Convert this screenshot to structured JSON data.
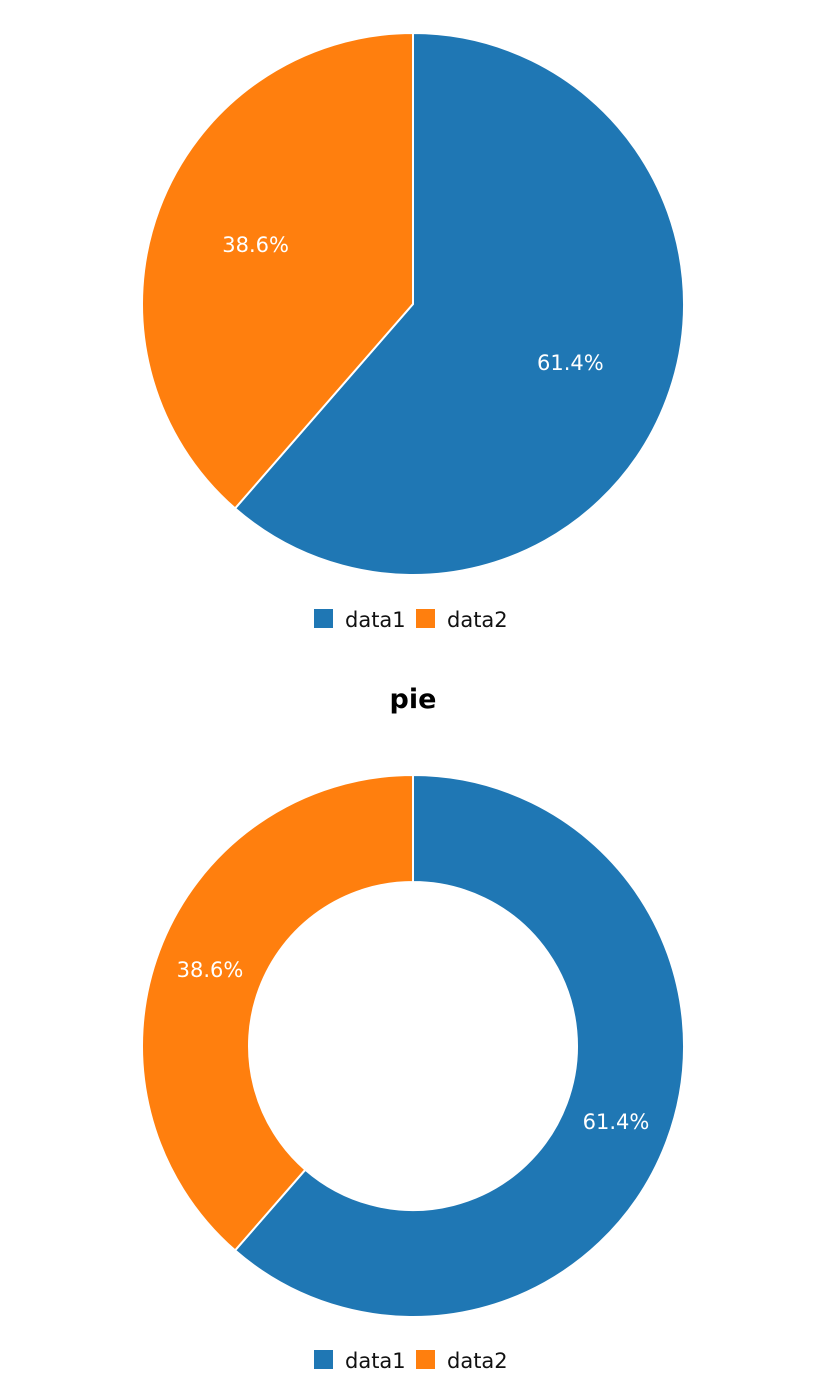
{
  "chart_data": [
    {
      "type": "pie",
      "title": "",
      "categories": [
        "data1",
        "data2"
      ],
      "values": [
        61.4,
        38.6
      ],
      "labels": [
        "61.4%",
        "38.6%"
      ],
      "colors": [
        "#1f77b4",
        "#ff7f0e"
      ],
      "legend": "bottom"
    },
    {
      "type": "pie",
      "variant": "donut",
      "title": "pie",
      "categories": [
        "data1",
        "data2"
      ],
      "values": [
        61.4,
        38.6
      ],
      "labels": [
        "61.4%",
        "38.6%"
      ],
      "colors": [
        "#1f77b4",
        "#ff7f0e"
      ],
      "legend": "bottom"
    }
  ]
}
